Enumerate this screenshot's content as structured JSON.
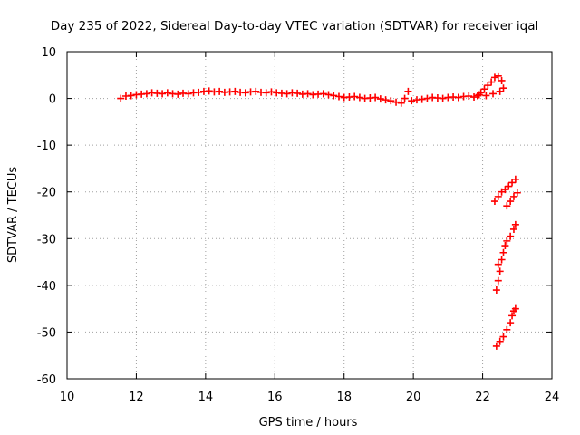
{
  "chart_data": {
    "type": "scatter",
    "title": "Day 235 of 2022, Sidereal Day-to-day VTEC variation (SDTVAR) for receiver iqal",
    "xlabel": "GPS time / hours",
    "ylabel": "SDTVAR / TECUs",
    "xlim": [
      10,
      24
    ],
    "ylim": [
      -60,
      10
    ],
    "xticks": [
      10,
      12,
      14,
      16,
      18,
      20,
      22,
      24
    ],
    "yticks": [
      -60,
      -50,
      -40,
      -30,
      -20,
      -10,
      0,
      10
    ],
    "xtick_labels": [
      "10",
      "12",
      "14",
      "16",
      "18",
      "20",
      "22",
      "24"
    ],
    "ytick_labels": [
      "-60",
      "-50",
      "-40",
      "-30",
      "-20",
      "-10",
      "0",
      "10"
    ],
    "grid": true,
    "marker": "+",
    "series_color": "#ff0000",
    "series": [
      {
        "points": [
          [
            11.55,
            0.0
          ],
          [
            11.7,
            0.5
          ],
          [
            11.85,
            0.6
          ],
          [
            12.0,
            0.8
          ],
          [
            12.15,
            0.9
          ],
          [
            12.3,
            1.0
          ],
          [
            12.45,
            1.2
          ],
          [
            12.6,
            1.1
          ],
          [
            12.75,
            1.0
          ],
          [
            12.9,
            1.2
          ],
          [
            13.05,
            1.0
          ],
          [
            13.2,
            0.9
          ],
          [
            13.35,
            1.1
          ],
          [
            13.5,
            1.0
          ],
          [
            13.65,
            1.2
          ],
          [
            13.8,
            1.3
          ],
          [
            13.95,
            1.5
          ],
          [
            14.1,
            1.6
          ],
          [
            14.25,
            1.4
          ],
          [
            14.4,
            1.5
          ],
          [
            14.55,
            1.3
          ],
          [
            14.7,
            1.4
          ],
          [
            14.85,
            1.5
          ],
          [
            15.0,
            1.3
          ],
          [
            15.15,
            1.2
          ],
          [
            15.3,
            1.4
          ],
          [
            15.45,
            1.5
          ],
          [
            15.6,
            1.3
          ],
          [
            15.75,
            1.2
          ],
          [
            15.9,
            1.4
          ],
          [
            16.05,
            1.2
          ],
          [
            16.2,
            1.1
          ],
          [
            16.35,
            1.0
          ],
          [
            16.5,
            1.2
          ],
          [
            16.65,
            1.1
          ],
          [
            16.8,
            0.9
          ],
          [
            16.95,
            1.0
          ],
          [
            17.1,
            0.8
          ],
          [
            17.25,
            0.9
          ],
          [
            17.4,
            1.0
          ],
          [
            17.55,
            0.8
          ],
          [
            17.7,
            0.6
          ],
          [
            17.85,
            0.4
          ],
          [
            18.0,
            0.2
          ],
          [
            18.15,
            0.3
          ],
          [
            18.3,
            0.4
          ],
          [
            18.45,
            0.2
          ],
          [
            18.6,
            0.0
          ],
          [
            18.75,
            0.1
          ],
          [
            18.9,
            0.2
          ],
          [
            19.05,
            -0.1
          ],
          [
            19.2,
            -0.3
          ],
          [
            19.35,
            -0.5
          ],
          [
            19.5,
            -0.8
          ],
          [
            19.65,
            -1.0
          ],
          [
            19.75,
            0.0
          ],
          [
            19.85,
            1.5
          ],
          [
            19.95,
            -0.5
          ],
          [
            20.1,
            -0.3
          ],
          [
            20.25,
            -0.2
          ],
          [
            20.4,
            0.0
          ],
          [
            20.55,
            0.2
          ],
          [
            20.7,
            0.1
          ],
          [
            20.85,
            0.0
          ],
          [
            21.0,
            0.2
          ],
          [
            21.15,
            0.3
          ],
          [
            21.3,
            0.2
          ],
          [
            21.45,
            0.4
          ],
          [
            21.6,
            0.5
          ],
          [
            21.75,
            0.3
          ],
          [
            21.85,
            0.6
          ],
          [
            21.95,
            1.2
          ],
          [
            22.05,
            2.0
          ],
          [
            22.15,
            2.8
          ],
          [
            22.25,
            3.5
          ],
          [
            22.35,
            4.5
          ],
          [
            22.45,
            4.8
          ],
          [
            22.55,
            3.8
          ],
          [
            22.6,
            2.2
          ],
          [
            22.5,
            1.5
          ],
          [
            22.3,
            1.0
          ],
          [
            22.1,
            0.6
          ],
          [
            21.9,
            0.8
          ],
          [
            22.35,
            -22.0
          ],
          [
            22.45,
            -21.0
          ],
          [
            22.55,
            -20.0
          ],
          [
            22.65,
            -19.5
          ],
          [
            22.75,
            -18.8
          ],
          [
            22.85,
            -18.0
          ],
          [
            22.95,
            -17.3
          ],
          [
            22.7,
            -23.0
          ],
          [
            22.8,
            -22.0
          ],
          [
            22.9,
            -21.0
          ],
          [
            23.0,
            -20.2
          ],
          [
            22.4,
            -41.0
          ],
          [
            22.45,
            -39.0
          ],
          [
            22.5,
            -37.0
          ],
          [
            22.45,
            -35.5
          ],
          [
            22.55,
            -34.5
          ],
          [
            22.6,
            -33.0
          ],
          [
            22.65,
            -31.5
          ],
          [
            22.7,
            -30.5
          ],
          [
            22.8,
            -29.5
          ],
          [
            22.9,
            -28.0
          ],
          [
            22.95,
            -27.0
          ],
          [
            22.4,
            -53.0
          ],
          [
            22.5,
            -52.0
          ],
          [
            22.6,
            -51.0
          ],
          [
            22.7,
            -49.5
          ],
          [
            22.8,
            -48.0
          ],
          [
            22.85,
            -46.5
          ],
          [
            22.9,
            -45.5
          ],
          [
            22.95,
            -45.0
          ]
        ]
      }
    ]
  }
}
